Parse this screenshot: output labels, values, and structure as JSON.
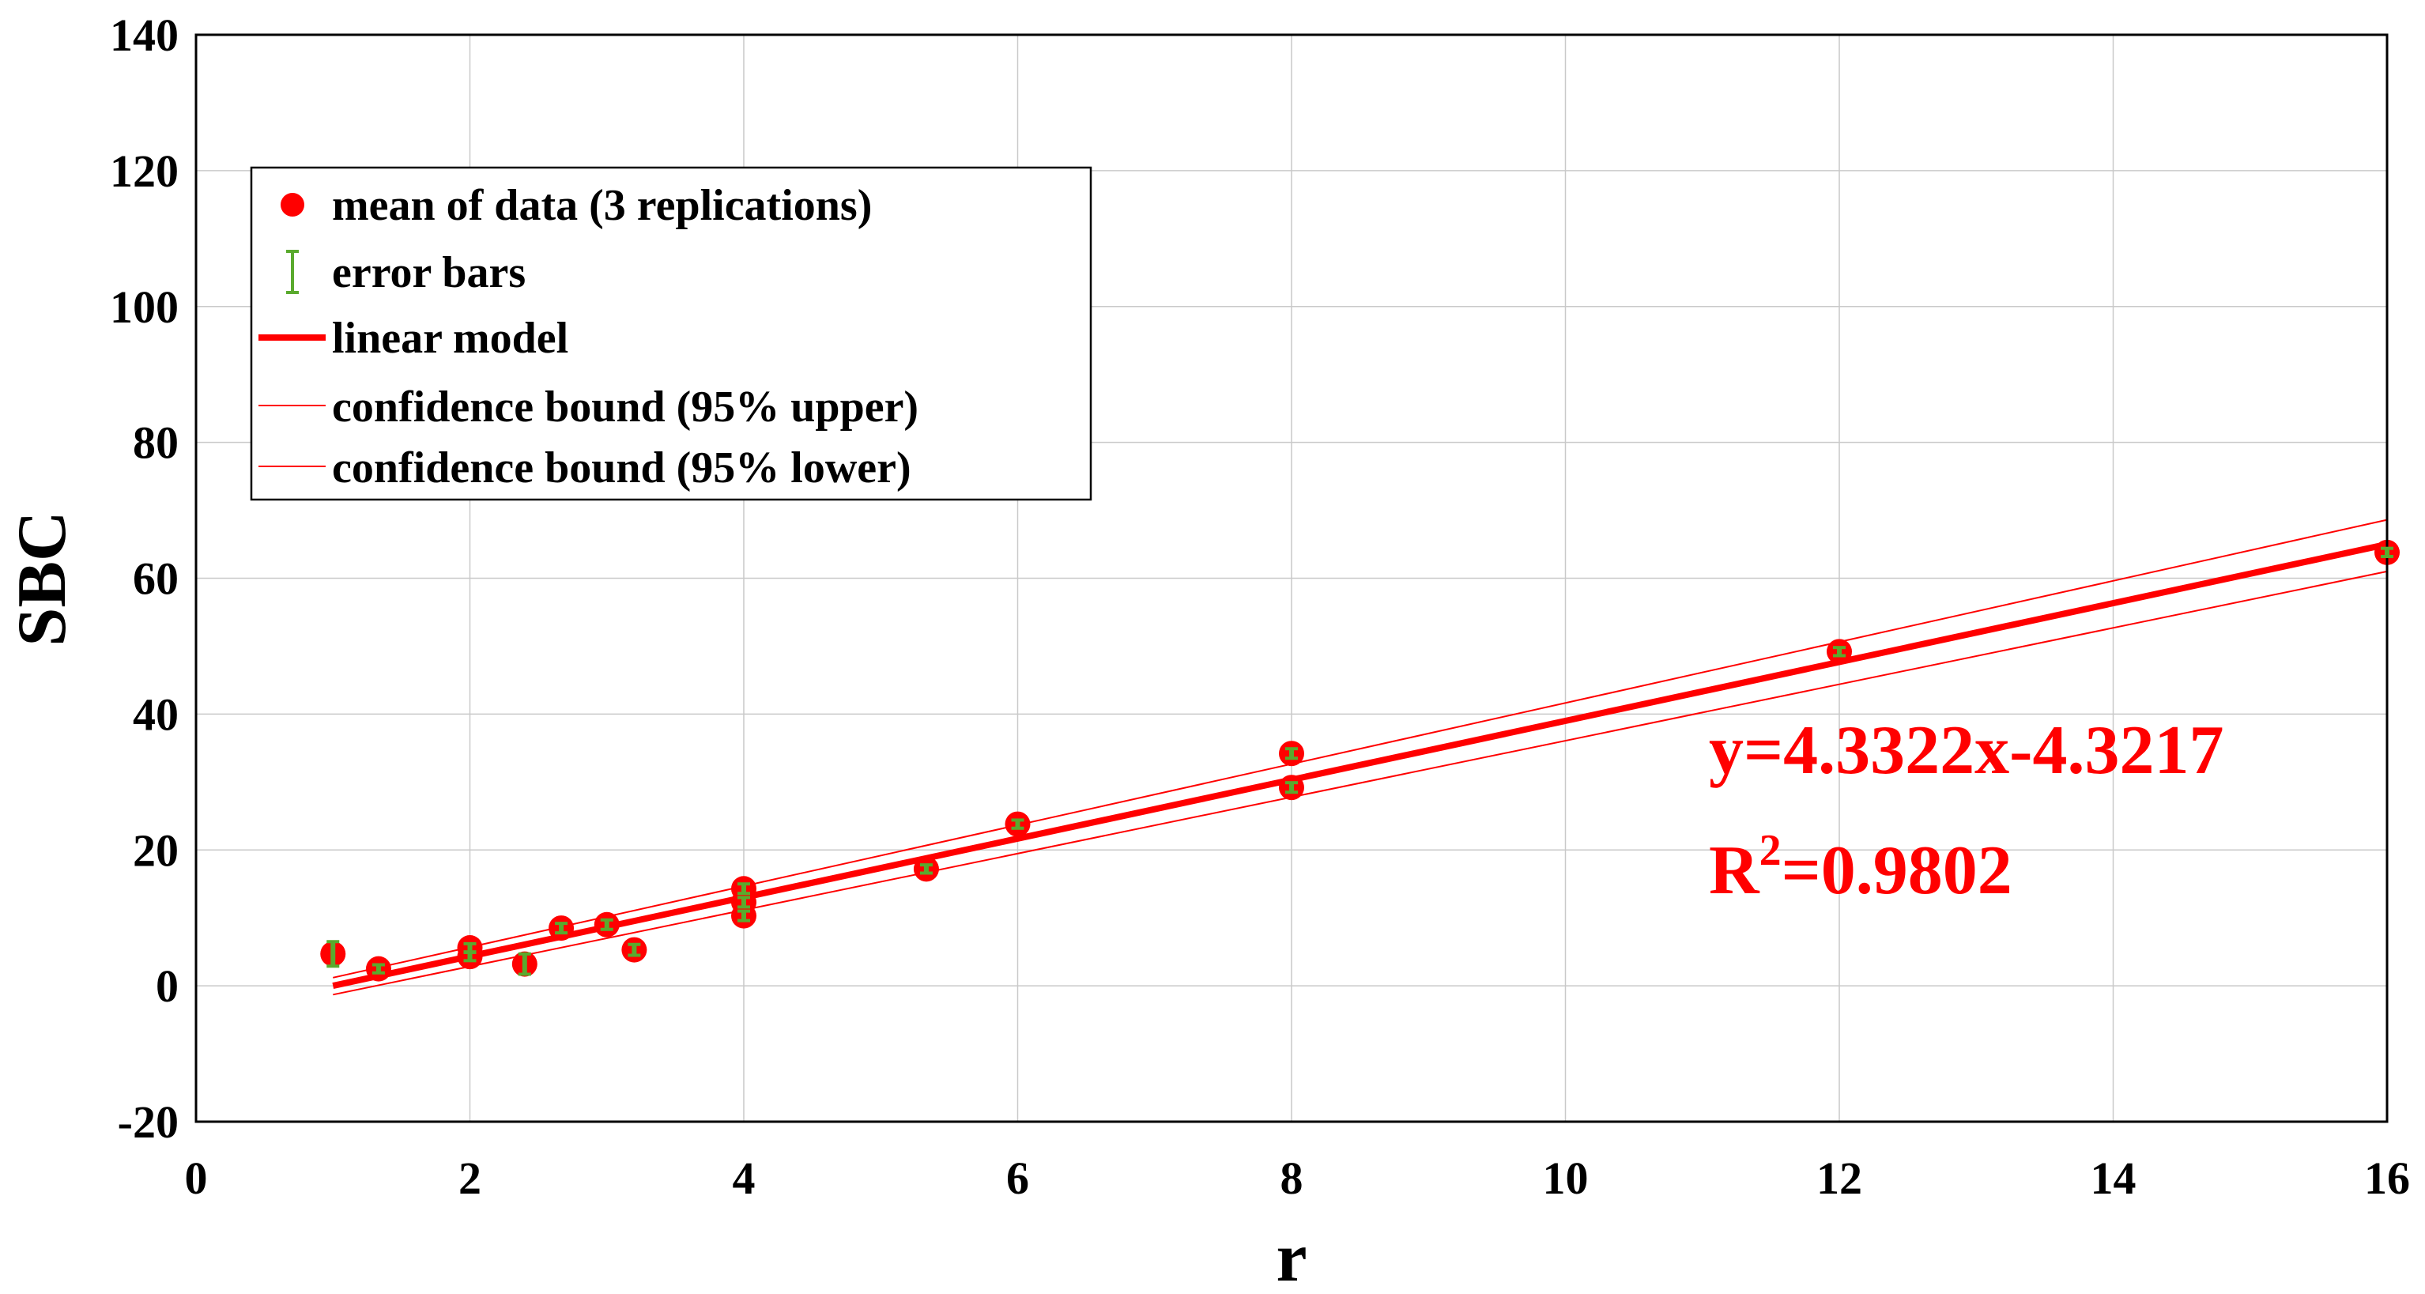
{
  "colors": {
    "marker": "#ff0000",
    "errorbar": "#5aaa2e",
    "fit": "#ff0000",
    "grid": "#c9c9c9",
    "axis": "#000000"
  },
  "chart_data": {
    "type": "scatter",
    "xlabel": "r",
    "ylabel": "SBC",
    "xlim": [
      0,
      16
    ],
    "ylim": [
      -20,
      140
    ],
    "xticks": [
      0,
      2,
      4,
      6,
      8,
      10,
      12,
      14,
      16
    ],
    "yticks": [
      -20,
      0,
      20,
      40,
      60,
      80,
      100,
      120,
      140
    ],
    "grid": true,
    "legend_position": "top-left",
    "legend": [
      "mean of data (3 replications)",
      "error bars",
      "linear model",
      "confidence bound (95% upper)",
      "confidence bound (95% lower)"
    ],
    "series": [
      {
        "name": "mean of data (3 replications)",
        "points": [
          {
            "x": 1,
            "y": 4.7,
            "err": 1.8
          },
          {
            "x": 1.333,
            "y": 2.5,
            "err": 0.6
          },
          {
            "x": 2,
            "y": 5.6,
            "err": 0.6
          },
          {
            "x": 2,
            "y": 4.3,
            "err": 0.6
          },
          {
            "x": 2.4,
            "y": 3.2,
            "err": 1.5
          },
          {
            "x": 2.667,
            "y": 8.5,
            "err": 0.7
          },
          {
            "x": 3,
            "y": 9.0,
            "err": 0.7
          },
          {
            "x": 3.2,
            "y": 5.3,
            "err": 0.8
          },
          {
            "x": 4,
            "y": 14.3,
            "err": 0.7
          },
          {
            "x": 4,
            "y": 12.3,
            "err": 0.7
          },
          {
            "x": 4,
            "y": 10.3,
            "err": 0.7
          },
          {
            "x": 5.333,
            "y": 17.2,
            "err": 0.6
          },
          {
            "x": 6,
            "y": 23.8,
            "err": 0.6
          },
          {
            "x": 8,
            "y": 34.2,
            "err": 0.7
          },
          {
            "x": 8,
            "y": 29.2,
            "err": 0.7
          },
          {
            "x": 12,
            "y": 49.2,
            "err": 0.6
          },
          {
            "x": 16,
            "y": 63.8,
            "err": 0.6
          }
        ]
      },
      {
        "name": "linear model",
        "slope": 4.3322,
        "intercept": -4.3217,
        "x_range": [
          1,
          16
        ]
      },
      {
        "name": "confidence bound (95% upper)",
        "x": [
          1,
          16
        ],
        "y": [
          1.2,
          68.6
        ]
      },
      {
        "name": "confidence bound (95% lower)",
        "x": [
          1,
          16
        ],
        "y": [
          -1.3,
          61.0
        ]
      }
    ],
    "annotations": {
      "equation": "y=4.3322x-4.3217",
      "r2_prefix": "R",
      "r2_exponent": "2",
      "r2_value": "=0.9802"
    }
  }
}
